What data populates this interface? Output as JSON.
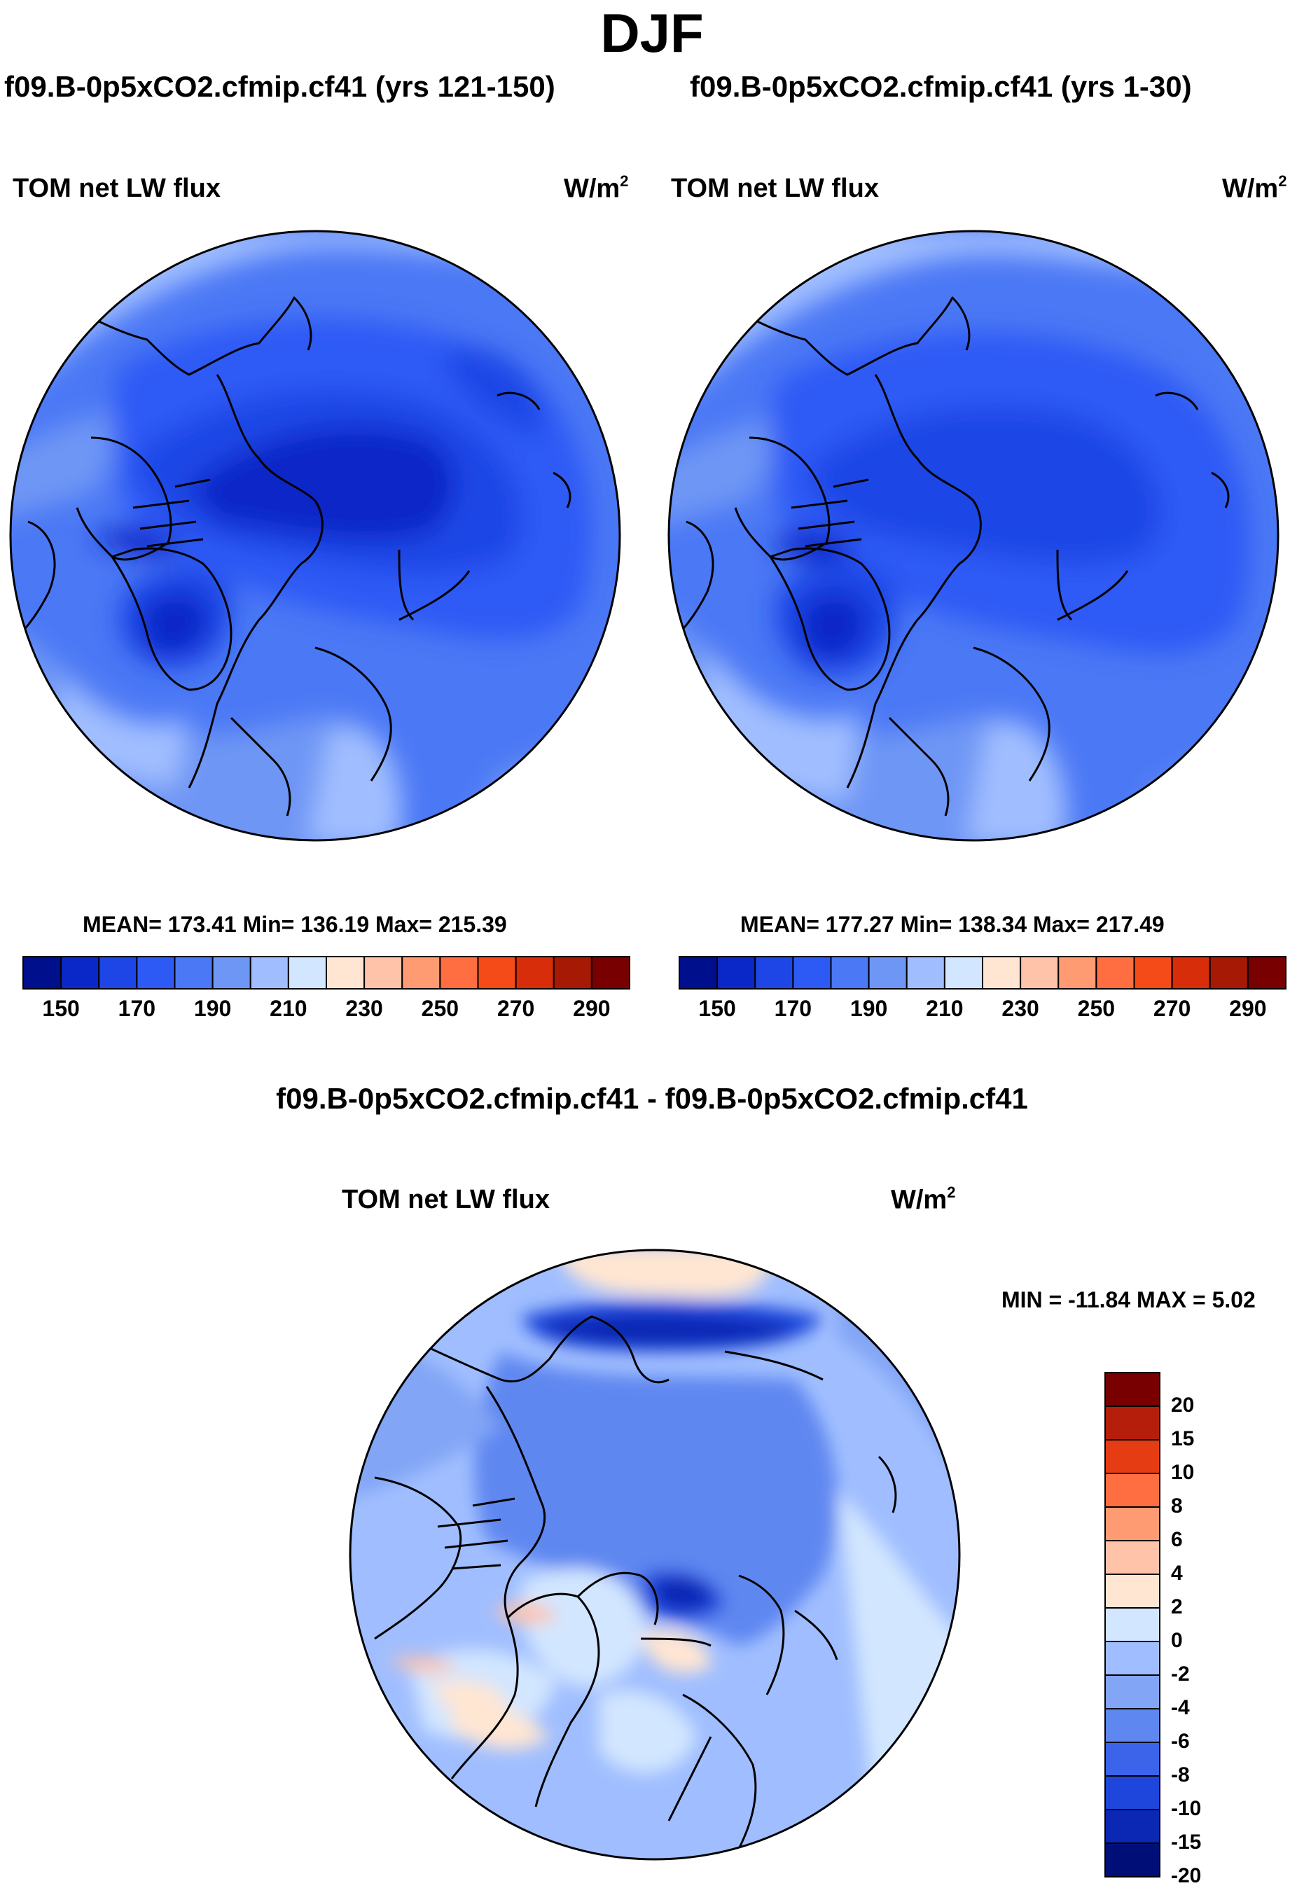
{
  "main_title": "DJF",
  "panel_left": {
    "title": "f09.B-0p5xCO2.cfmip.cf41 (yrs 121-150)",
    "variable": "TOM net LW flux",
    "units": "W/m",
    "units_sup": "2",
    "stats": "MEAN= 173.41  Min= 136.19  Max= 215.39"
  },
  "panel_right": {
    "title": "f09.B-0p5xCO2.cfmip.cf41 (yrs 1-30)",
    "variable": "TOM net LW flux",
    "units": "W/m",
    "units_sup": "2",
    "stats": "MEAN= 177.27  Min= 138.34  Max= 217.49"
  },
  "panel_diff": {
    "title": "f09.B-0p5xCO2.cfmip.cf41 - f09.B-0p5xCO2.cfmip.cf41",
    "variable": "TOM net LW flux",
    "units": "W/m",
    "units_sup": "2",
    "stats": "MIN = -11.84 MAX =   5.02"
  },
  "chart_data": [
    {
      "type": "heatmap",
      "projection": "north polar stereographic",
      "title": "f09.B-0p5xCO2.cfmip.cf41 (yrs 121-150)",
      "variable": "TOM net LW flux",
      "units": "W/m2",
      "mean": 173.41,
      "min": 136.19,
      "max": 215.39,
      "colorbar": {
        "tick_labels": [
          "150",
          "170",
          "190",
          "210",
          "230",
          "250",
          "270",
          "290"
        ],
        "colors": [
          "#000f8c",
          "#0a28c8",
          "#1e46e6",
          "#2d5af5",
          "#4b78f5",
          "#6e96f5",
          "#a0beff",
          "#d2e6ff",
          "#ffe6d2",
          "#ffc3aa",
          "#ff9b73",
          "#ff6e41",
          "#f54b19",
          "#d72d0a",
          "#a51905",
          "#780000"
        ]
      }
    },
    {
      "type": "heatmap",
      "projection": "north polar stereographic",
      "title": "f09.B-0p5xCO2.cfmip.cf41 (yrs 1-30)",
      "variable": "TOM net LW flux",
      "units": "W/m2",
      "mean": 177.27,
      "min": 138.34,
      "max": 217.49,
      "colorbar": {
        "tick_labels": [
          "150",
          "170",
          "190",
          "210",
          "230",
          "250",
          "270",
          "290"
        ],
        "colors": [
          "#000f8c",
          "#0a28c8",
          "#1e46e6",
          "#2d5af5",
          "#4b78f5",
          "#6e96f5",
          "#a0beff",
          "#d2e6ff",
          "#ffe6d2",
          "#ffc3aa",
          "#ff9b73",
          "#ff6e41",
          "#f54b19",
          "#d72d0a",
          "#a51905",
          "#780000"
        ]
      }
    },
    {
      "type": "heatmap",
      "projection": "north polar stereographic",
      "title": "f09.B-0p5xCO2.cfmip.cf41 - f09.B-0p5xCO2.cfmip.cf41",
      "variable": "TOM net LW flux",
      "units": "W/m2",
      "min": -11.84,
      "max": 5.02,
      "colorbar": {
        "tick_labels": [
          "20",
          "15",
          "10",
          "8",
          "6",
          "4",
          "2",
          "0",
          "-2",
          "-4",
          "-6",
          "-8",
          "-10",
          "-15",
          "-20"
        ],
        "colors": [
          "#780000",
          "#b41e0a",
          "#e63c14",
          "#ff6e41",
          "#ff9b73",
          "#ffc3aa",
          "#ffe6d2",
          "#d2e6ff",
          "#a0beff",
          "#82a5f5",
          "#5f87f0",
          "#3c64eb",
          "#1e46dc",
          "#0a28b4",
          "#000f78"
        ]
      }
    }
  ]
}
